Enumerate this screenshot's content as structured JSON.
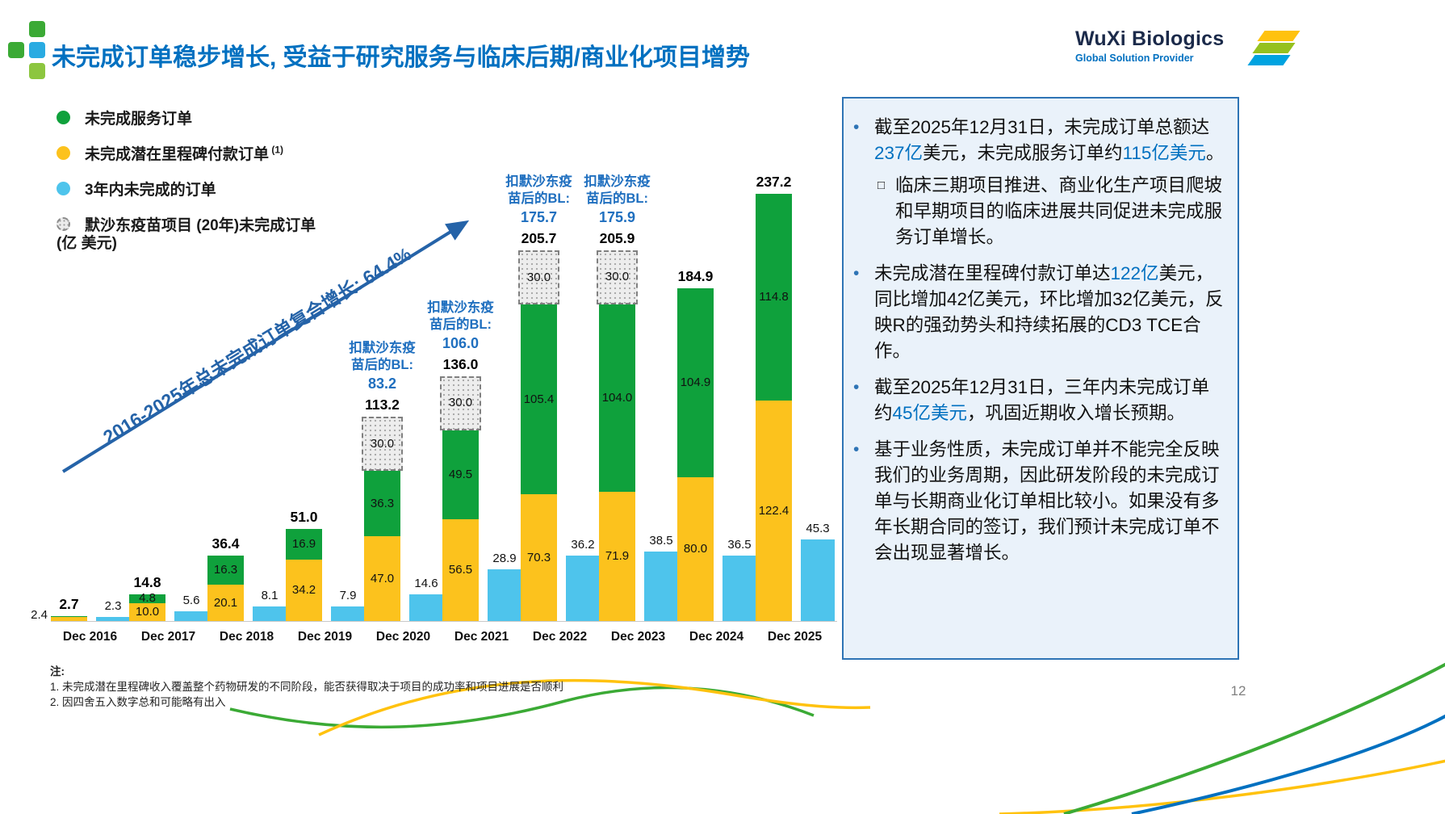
{
  "page_number": "12",
  "colors": {
    "brand_blue": "#0070C0",
    "annotation_blue": "#1F6FBF",
    "service_green": "#0FA13C",
    "milestone_yellow": "#FCC21D",
    "three_year_blue": "#4EC4EC",
    "merck_gray": "#ECECEC",
    "panel_bg": "#EAF2FA",
    "panel_border": "#2E74B5"
  },
  "header": {
    "title": "未完成订单稳步增长, 受益于研究服务与临床后期/商业化项目增势",
    "logo": {
      "name": "WuXi Biologics",
      "tagline": "Global Solution Provider"
    }
  },
  "legend": {
    "items": [
      {
        "label": "未完成服务订单",
        "color": "#0FA13C"
      },
      {
        "label": "未完成潜在里程碑付款订单",
        "superscript": "(1)",
        "color": "#FCC21D"
      },
      {
        "label": "3年内未完成的订单",
        "color": "#4EC4EC"
      },
      {
        "label": "默沙东疫苗项目 (20年)未完成订单",
        "color": "#ECECEC",
        "dashed": true
      }
    ]
  },
  "chart_data": {
    "type": "stacked-bar",
    "unit_label": "(亿  美元)",
    "ylim": [
      0,
      250
    ],
    "legend_position": "top-left",
    "categories": [
      "Dec 2016",
      "Dec 2017",
      "Dec 2018",
      "Dec 2019",
      "Dec 2020",
      "Dec 2021",
      "Dec 2022",
      "Dec 2023",
      "Dec 2024",
      "Dec 2025"
    ],
    "series": [
      {
        "name": "未完成潜在里程碑付款订单",
        "color": "#FCC21D",
        "values": [
          2.4,
          10.0,
          20.1,
          34.2,
          47.0,
          56.5,
          70.3,
          71.9,
          80.0,
          122.4
        ],
        "labels": [
          "2.4",
          "10.0",
          "20.1",
          "34.2",
          "47.0",
          "56.5",
          "70.3",
          "71.9",
          "80.0",
          "122.4"
        ]
      },
      {
        "name": "未完成服务订单",
        "color": "#0FA13C",
        "values": [
          0.3,
          4.8,
          16.3,
          16.9,
          36.3,
          49.5,
          105.4,
          104.0,
          104.9,
          114.8
        ],
        "labels": [
          null,
          "4.8",
          "16.3",
          "16.9",
          "36.3",
          "49.5",
          "105.4",
          "104.0",
          "104.9",
          "114.8"
        ]
      },
      {
        "name": "默沙东疫苗项目 (20年)未完成订单",
        "color": "#ECECEC",
        "dashed": true,
        "values": [
          null,
          null,
          null,
          null,
          30.0,
          30.0,
          30.0,
          30.0,
          null,
          null
        ],
        "labels": [
          null,
          null,
          null,
          null,
          "30.0",
          "30.0",
          "30.0",
          "30.0",
          null,
          null
        ]
      }
    ],
    "total_labels": [
      "2.7",
      "14.8",
      "36.4",
      "51.0",
      "113.2",
      "136.0",
      "205.7",
      "205.9",
      "184.9",
      "237.2"
    ],
    "secondary_series": {
      "name": "3年内未完成的订单",
      "color": "#4EC4EC",
      "values": [
        2.3,
        5.6,
        8.1,
        7.9,
        14.6,
        28.9,
        36.2,
        38.5,
        36.5,
        45.3
      ],
      "labels": [
        "2.3",
        "5.6",
        "8.1",
        "7.9",
        "14.6",
        "28.9",
        "36.2",
        "38.5",
        "36.5",
        "45.3"
      ]
    },
    "annotations": [
      {
        "category_index": 4,
        "label_lines": [
          "扣默沙东疫",
          "苗后的BL:"
        ],
        "value": "83.2"
      },
      {
        "category_index": 5,
        "label_lines": [
          "扣默沙东疫",
          "苗后的BL:"
        ],
        "value": "106.0"
      },
      {
        "category_index": 6,
        "label_lines": [
          "扣默沙东疫",
          "苗后的BL:"
        ],
        "value": "175.7"
      },
      {
        "category_index": 7,
        "label_lines": [
          "扣默沙东疫",
          "苗后的BL:"
        ],
        "value": "175.9"
      }
    ],
    "growth_annotation": "2016-2025年总未完成订单复合增长: 64.4%"
  },
  "panel": {
    "marker": "•",
    "sub_marker": "□",
    "bullets": [
      {
        "segments": [
          {
            "t": "截至2025年12月31日，未完成订单总额达"
          },
          {
            "t": "237亿",
            "h": true
          },
          {
            "t": "美元，未完成服务订单约"
          },
          {
            "t": "115亿美元",
            "h": true
          },
          {
            "t": "。"
          }
        ]
      },
      {
        "sub": true,
        "segments": [
          {
            "t": "临床三期项目推进、商业化生产项目爬坡和早期项目的临床进展共同促进未完成服务订单增长。"
          }
        ]
      },
      {
        "segments": [
          {
            "t": "未完成潜在里程碑付款订单达"
          },
          {
            "t": "122亿",
            "h": true
          },
          {
            "t": "美元， 同比增加42亿美元，环比增加32亿美元，反映R的强劲势头和持续拓展的CD3 TCE合作。"
          }
        ]
      },
      {
        "segments": [
          {
            "t": "截至2025年12月31日，三年内未完成订单约"
          },
          {
            "t": "45亿美元",
            "h": true
          },
          {
            "t": "，巩固近期收入增长预期。"
          }
        ]
      },
      {
        "segments": [
          {
            "t": "基于业务性质，未完成订单并不能完全反映我们的业务周期，因此研发阶段的未完成订单与长期商业化订单相比较小。如果没有多年长期合同的签订，我们预计未完成订单不会出现显著增长。"
          }
        ]
      }
    ]
  },
  "footnotes": {
    "heading": "注:",
    "items": [
      "1. 未完成潜在里程碑收入覆盖整个药物研发的不同阶段，能否获得取决于项目的成功率和项目进展是否顺利",
      "2. 因四舍五入数字总和可能略有出入"
    ]
  }
}
